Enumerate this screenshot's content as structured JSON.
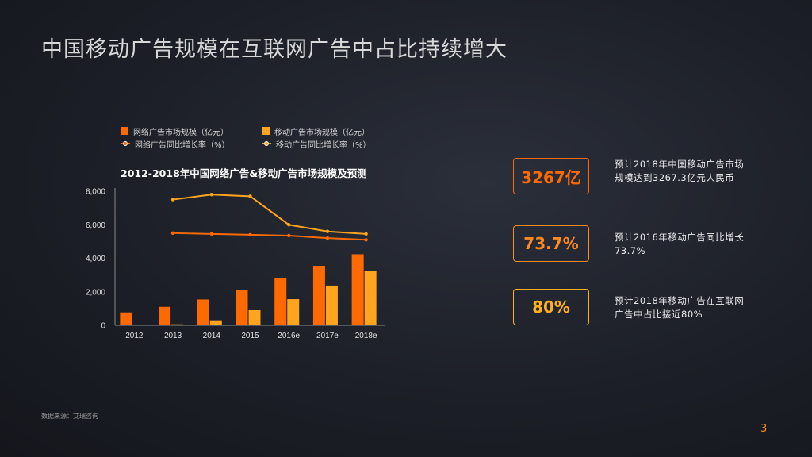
{
  "title": "中国移动广告规模在互联网广告中占比持续增大",
  "legend": {
    "items": [
      {
        "label": "网络广告市场规模（亿元）",
        "color": "#ff6a00",
        "kind": "bar"
      },
      {
        "label": "移动广告市场规模（亿元）",
        "color": "#ffa41f",
        "kind": "bar"
      },
      {
        "label": "网络广告同比增长率（%）",
        "color": "#ff6a00",
        "kind": "line"
      },
      {
        "label": "移动广告同比增长率（%）",
        "color": "#ffa41f",
        "kind": "line"
      }
    ]
  },
  "chart_title": "2012-2018年中国网络广告&移动广告市场规模及预测",
  "chart_data": {
    "type": "bar",
    "title": "2012-2018年中国网络广告&移动广告市场规模及预测",
    "categories": [
      "2012",
      "2013",
      "2014",
      "2015",
      "2016e",
      "2017e",
      "2018e"
    ],
    "ylim": [
      0,
      8000
    ],
    "yticks": [
      "0",
      "2,000",
      "4,000",
      "6,000",
      "8,000"
    ],
    "ytick_values": [
      0,
      2000,
      4000,
      6000,
      8000
    ],
    "series": [
      {
        "name": "网络广告市场规模（亿元）",
        "kind": "bar",
        "color": "#ff6a00",
        "values": [
          770,
          1100,
          1540,
          2100,
          2820,
          3550,
          4240
        ]
      },
      {
        "name": "移动广告市场规模（亿元）",
        "kind": "bar",
        "color": "#ffa41f",
        "values": [
          null,
          60,
          300,
          900,
          1560,
          2370,
          3260
        ]
      },
      {
        "name": "网络广告同比增长率（%）",
        "kind": "line",
        "color": "#ff6a00",
        "values": [
          null,
          5.5,
          5.45,
          5.4,
          5.35,
          5.2,
          5.1
        ]
      },
      {
        "name": "移动广告同比增长率（%）",
        "kind": "line",
        "color": "#ffa41f",
        "values": [
          null,
          7.5,
          7.8,
          7.7,
          6.0,
          5.6,
          5.45
        ]
      }
    ],
    "line_axis_note": "growth-rate lines share the left axis scale (values ×1000)",
    "grid": false
  },
  "stats": [
    {
      "value": "3267亿",
      "color": "#ff6a00",
      "text": "预计2018年中国移动广告市场规模达到3267.3亿元人民币"
    },
    {
      "value": "73.7%",
      "color": "#ff8a1e",
      "text": "预计2016年移动广告同比增长73.7%"
    },
    {
      "value": "80%",
      "color": "#ffb020",
      "text": "预计2018年移动广告在互联网广告中占比接近80%"
    }
  ],
  "source": "数据来源：艾瑞咨询",
  "page_number": "3"
}
